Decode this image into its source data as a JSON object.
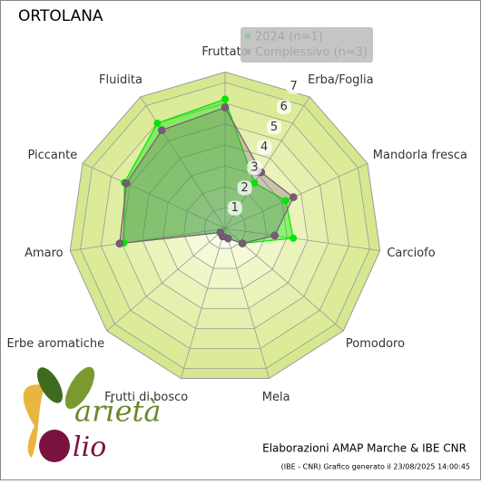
{
  "chart_data": {
    "type": "radar",
    "title": "ORTOLANA",
    "categories": [
      "Fruttato",
      "Erba/Foglia",
      "Mandorla fresca",
      "Carciofo",
      "Pomodoro",
      "Mela",
      "Frutti di bosco",
      "Erbe aromatiche",
      "Amaro",
      "Piccante",
      "Fluidita"
    ],
    "series": [
      {
        "name": "2024 (n=1)",
        "color": "#00e600",
        "values": [
          6.2,
          2.6,
          3.2,
          3.3,
          1.1,
          0.5,
          0.4,
          0.3,
          4.9,
          5.3,
          6.0
        ]
      },
      {
        "name": "Complessivo (n=3)",
        "color": "#7a5a78",
        "values": [
          5.8,
          3.2,
          3.6,
          2.4,
          1.1,
          0.5,
          0.4,
          0.3,
          5.1,
          5.2,
          5.6
        ]
      }
    ],
    "rlim": [
      0,
      7.5
    ],
    "rticks": [
      1,
      2,
      3,
      4,
      5,
      6,
      7
    ],
    "legend": "top-right"
  },
  "footer": {
    "credit": "Elaborazioni AMAP Marche & IBE CNR",
    "generated": "(IBE - CNR) Grafico generato il 23/08/2025 14:00:45"
  },
  "logo": {
    "word1": "arietà",
    "word2": "lio"
  }
}
